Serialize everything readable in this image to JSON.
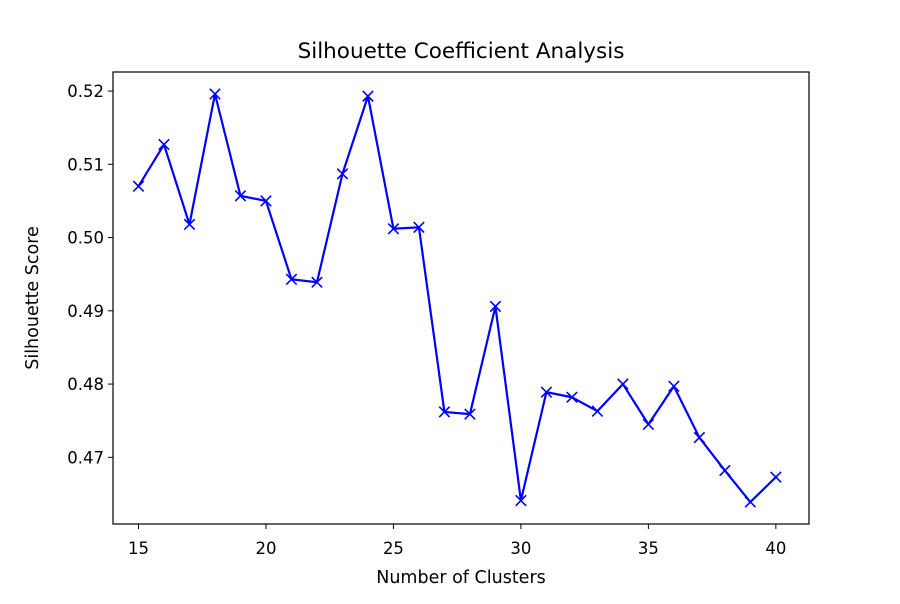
{
  "chart_data": {
    "type": "line",
    "title": "Silhouette Coefficient Analysis",
    "xlabel": "Number of Clusters",
    "ylabel": "Silhouette Score",
    "xlim": [
      14.0,
      41.3
    ],
    "ylim": [
      0.4609,
      0.5226
    ],
    "xticks": [
      15,
      20,
      25,
      30,
      35,
      40
    ],
    "xtick_labels": [
      "15",
      "20",
      "25",
      "30",
      "35",
      "40"
    ],
    "yticks": [
      0.47,
      0.48,
      0.49,
      0.5,
      0.51,
      0.52
    ],
    "ytick_labels": [
      "0.47",
      "0.48",
      "0.49",
      "0.50",
      "0.51",
      "0.52"
    ],
    "grid": false,
    "marker": "x",
    "series": [
      {
        "color": "#0000ff",
        "x": [
          15,
          16,
          17,
          18,
          19,
          20,
          21,
          22,
          23,
          24,
          25,
          26,
          27,
          28,
          29,
          30,
          31,
          32,
          33,
          34,
          35,
          36,
          37,
          38,
          39,
          40
        ],
        "y": [
          0.507,
          0.5127,
          0.5018,
          0.5196,
          0.5057,
          0.505,
          0.4943,
          0.4939,
          0.5087,
          0.5193,
          0.5012,
          0.5014,
          0.4762,
          0.4759,
          0.4906,
          0.4641,
          0.4789,
          0.4782,
          0.4763,
          0.48,
          0.4745,
          0.4797,
          0.4727,
          0.4682,
          0.4639,
          0.4673
        ]
      }
    ]
  }
}
